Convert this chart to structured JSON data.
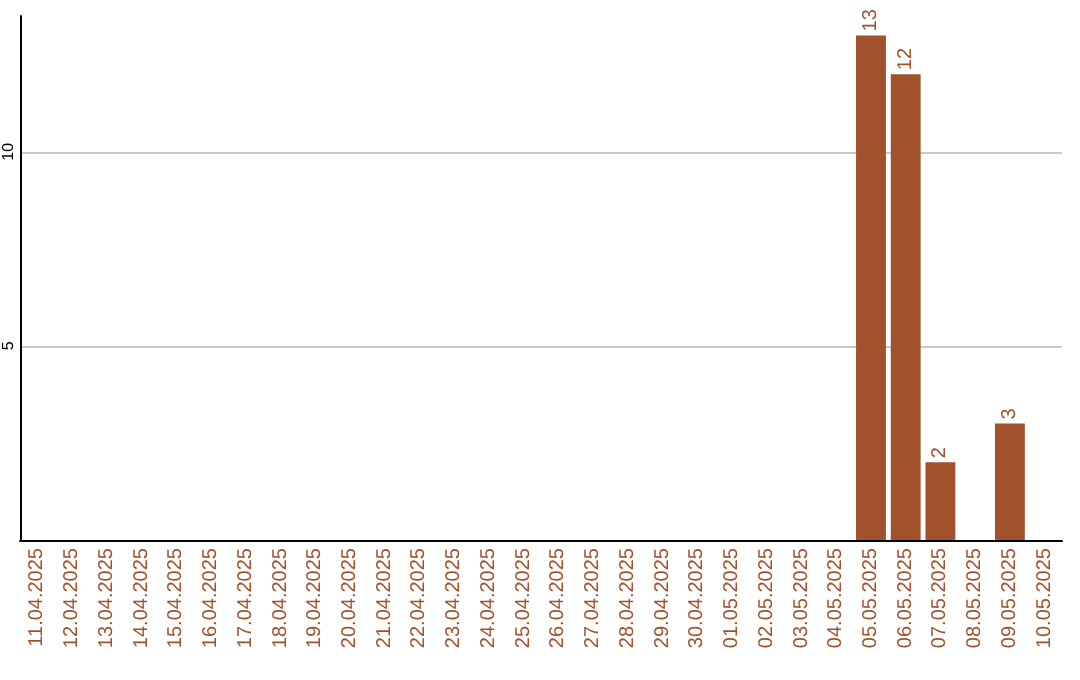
{
  "chart_data": {
    "type": "bar",
    "categories": [
      "11.04.2025",
      "12.04.2025",
      "13.04.2025",
      "14.04.2025",
      "15.04.2025",
      "16.04.2025",
      "17.04.2025",
      "18.04.2025",
      "19.04.2025",
      "20.04.2025",
      "21.04.2025",
      "22.04.2025",
      "23.04.2025",
      "24.04.2025",
      "25.04.2025",
      "26.04.2025",
      "27.04.2025",
      "28.04.2025",
      "29.04.2025",
      "30.04.2025",
      "01.05.2025",
      "02.05.2025",
      "03.05.2025",
      "04.05.2025",
      "05.05.2025",
      "06.05.2025",
      "07.05.2025",
      "08.05.2025",
      "09.05.2025",
      "10.05.2025"
    ],
    "values": [
      0,
      0,
      0,
      0,
      0,
      0,
      0,
      0,
      0,
      0,
      0,
      0,
      0,
      0,
      0,
      0,
      0,
      0,
      0,
      0,
      0,
      0,
      0,
      0,
      13,
      12,
      2,
      0,
      3,
      0
    ],
    "value_labels": [
      null,
      null,
      null,
      null,
      null,
      null,
      null,
      null,
      null,
      null,
      null,
      null,
      null,
      null,
      null,
      null,
      null,
      null,
      null,
      null,
      null,
      null,
      null,
      null,
      "13",
      "12",
      "2",
      null,
      "3",
      null
    ],
    "color": "#a0522d",
    "ylim": [
      0,
      13.5
    ],
    "yticks": [
      5,
      10
    ],
    "grid": "y"
  }
}
